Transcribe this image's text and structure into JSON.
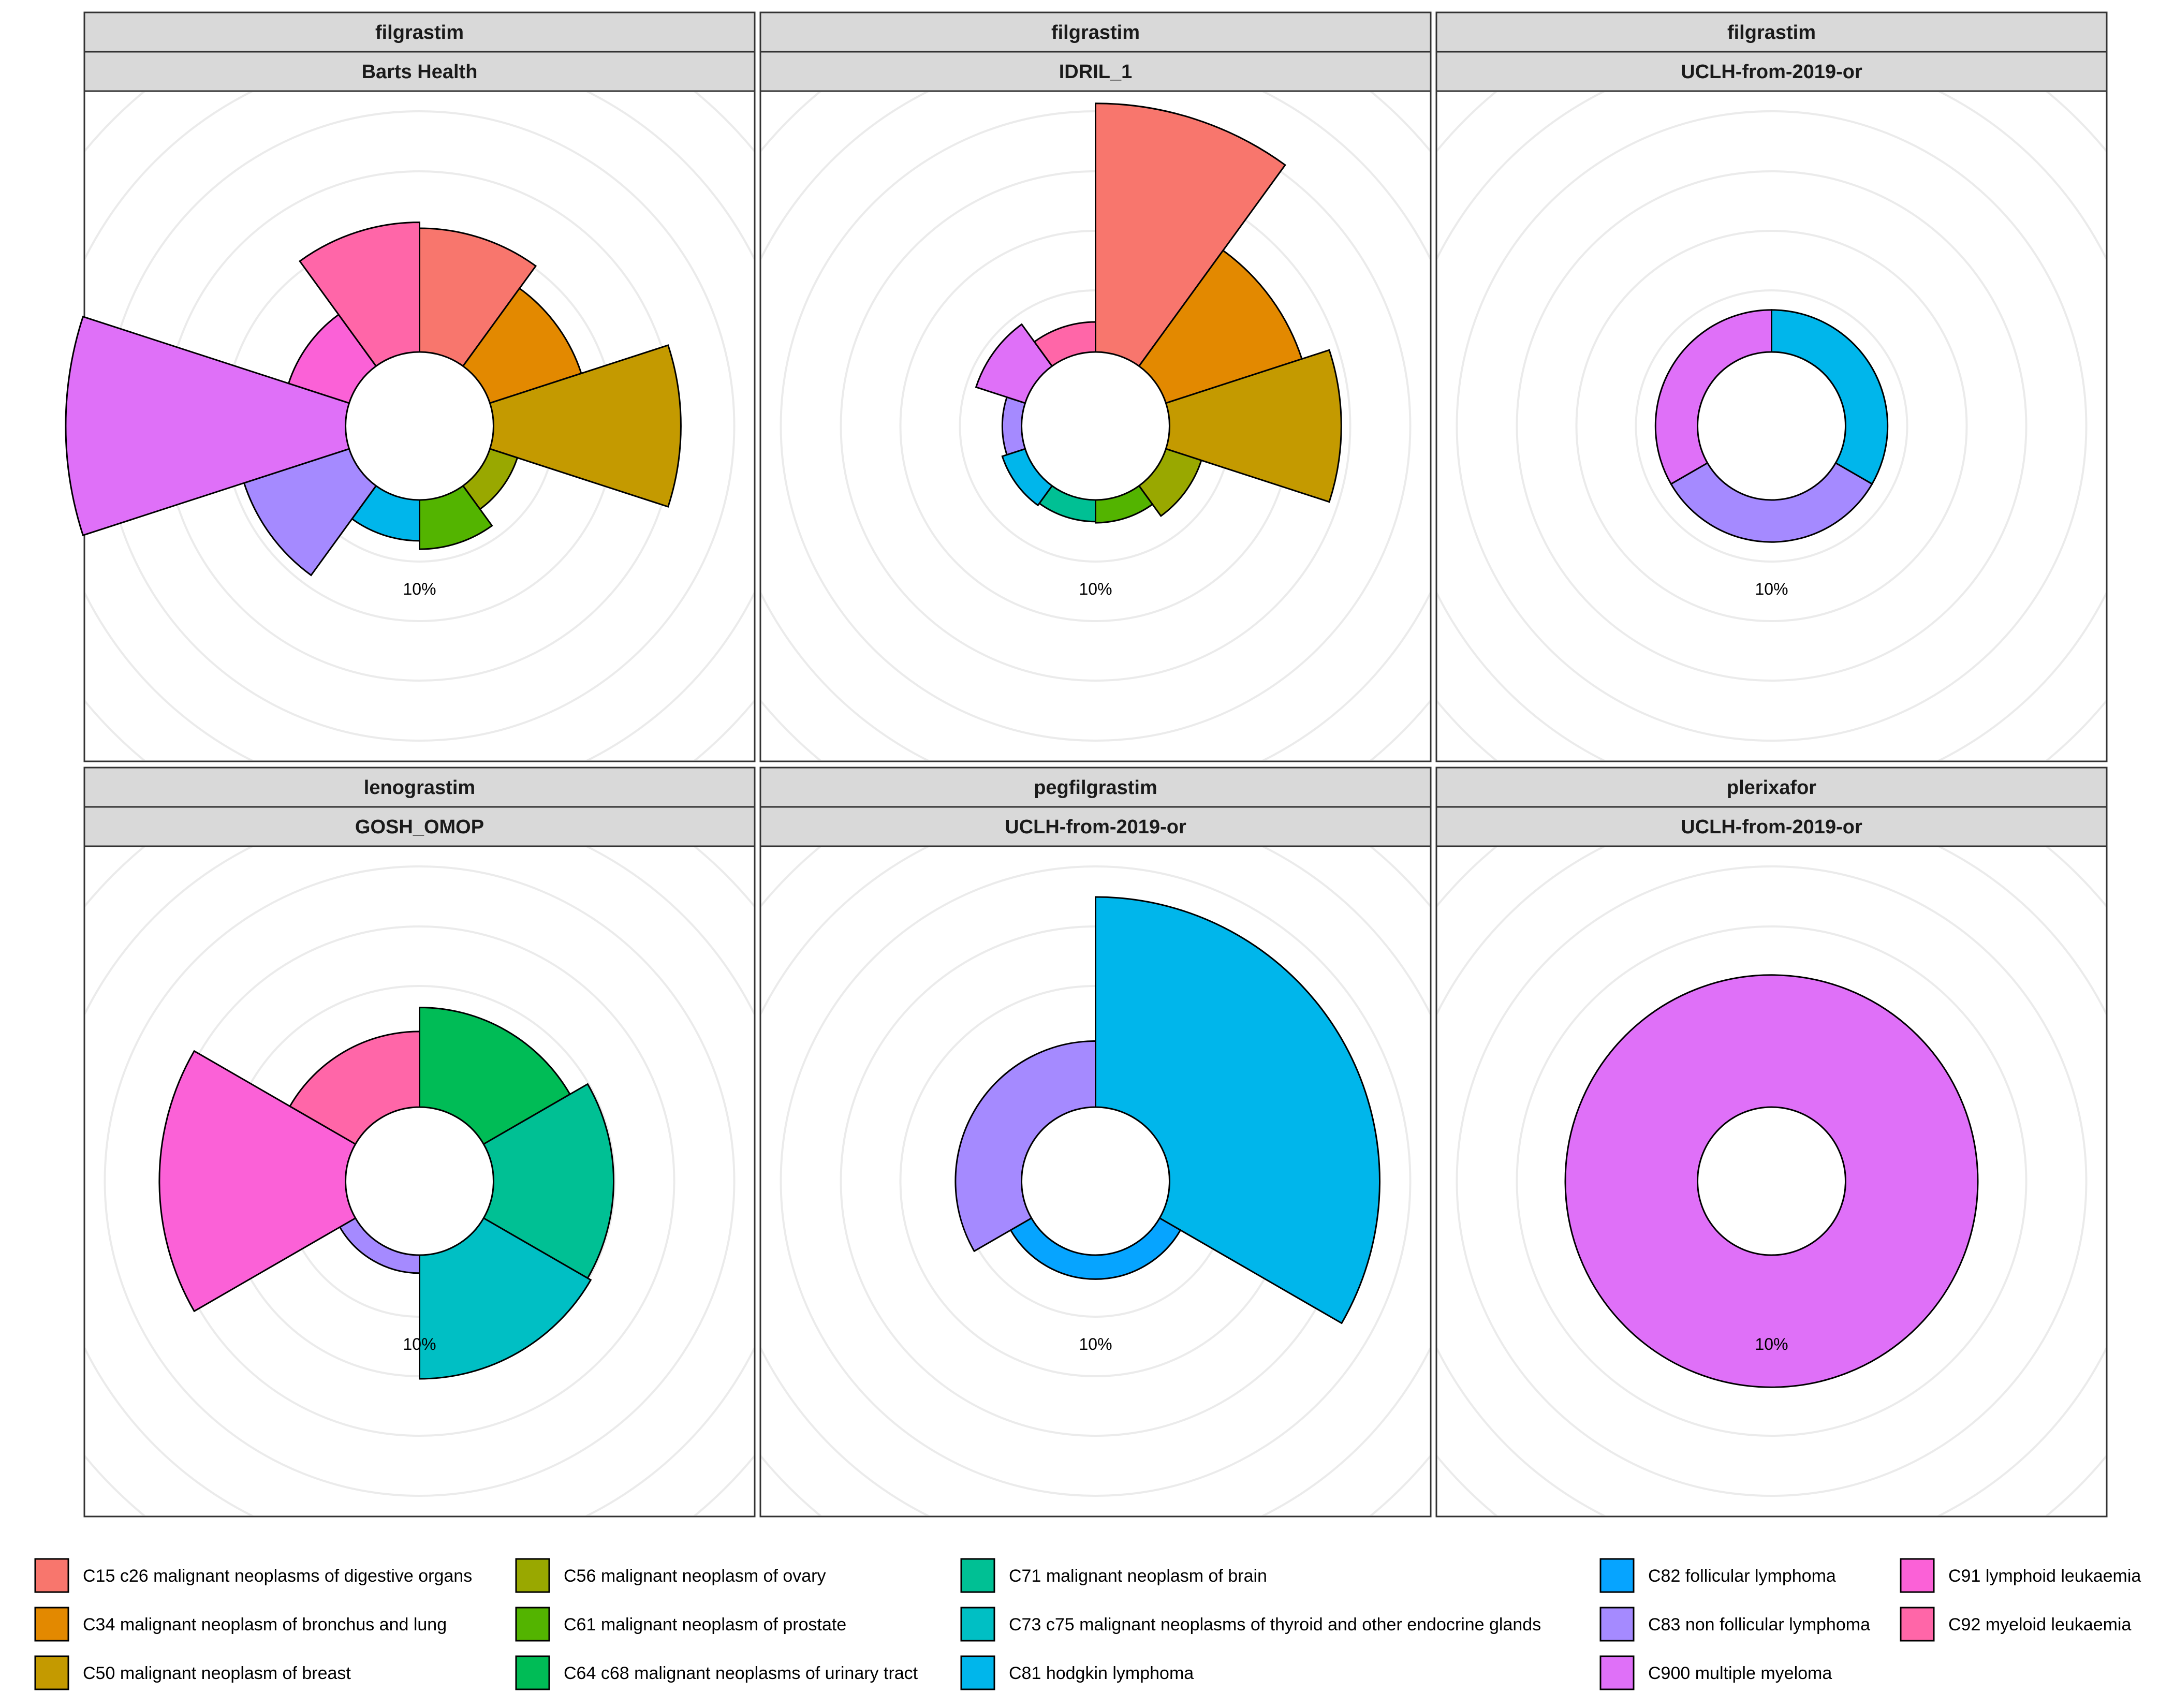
{
  "chart_data": {
    "type": "polar-bar",
    "radial_tick_label": "10%",
    "grid": true,
    "legend_position": "bottom",
    "categories": [
      {
        "code": "C15",
        "label": "C15 c26 malignant neoplasms of digestive organs",
        "color": "#F8766D"
      },
      {
        "code": "C34",
        "label": "C34 malignant neoplasm of bronchus and lung",
        "color": "#E38900"
      },
      {
        "code": "C50",
        "label": "C50 malignant neoplasm of breast",
        "color": "#C49A00"
      },
      {
        "code": "C56",
        "label": "C56 malignant neoplasm of ovary",
        "color": "#99A800"
      },
      {
        "code": "C61",
        "label": "C61 malignant neoplasm of prostate",
        "color": "#53B400"
      },
      {
        "code": "C64",
        "label": "C64 c68 malignant neoplasms of urinary tract",
        "color": "#00BC56"
      },
      {
        "code": "C71",
        "label": "C71 malignant neoplasm of brain",
        "color": "#00C094"
      },
      {
        "code": "C73",
        "label": "C73 c75 malignant neoplasms of thyroid and other endocrine glands",
        "color": "#00BFC4"
      },
      {
        "code": "C81",
        "label": "C81 hodgkin lymphoma",
        "color": "#00B6EB"
      },
      {
        "code": "C82",
        "label": "C82 follicular lymphoma",
        "color": "#06A4FF"
      },
      {
        "code": "C83",
        "label": "C83 non follicular lymphoma",
        "color": "#A58AFF"
      },
      {
        "code": "C900",
        "label": "C900 multiple myeloma",
        "color": "#DF70F8"
      },
      {
        "code": "C91",
        "label": "C91 lymphoid leukaemia",
        "color": "#FB61D7"
      },
      {
        "code": "C92",
        "label": "C92 myeloid leukaemia",
        "color": "#FF66A8"
      }
    ],
    "panels": [
      {
        "drug": "filgrastim",
        "site": "Barts Health",
        "slices": [
          {
            "category": "C15",
            "value": 10.3
          },
          {
            "category": "C34",
            "value": 8.0
          },
          {
            "category": "C50",
            "value": 15.6
          },
          {
            "category": "C56",
            "value": 2.4
          },
          {
            "category": "C61",
            "value": 4.1
          },
          {
            "category": "C81",
            "value": 3.4
          },
          {
            "category": "C83",
            "value": 9.2
          },
          {
            "category": "C900",
            "value": 23.3
          },
          {
            "category": "C91",
            "value": 5.3
          },
          {
            "category": "C92",
            "value": 10.8
          }
        ]
      },
      {
        "drug": "filgrastim",
        "site": "IDRIL_1",
        "slices": [
          {
            "category": "C15",
            "value": 20.7
          },
          {
            "category": "C34",
            "value": 11.9
          },
          {
            "category": "C50",
            "value": 14.3
          },
          {
            "category": "C56",
            "value": 3.1
          },
          {
            "category": "C61",
            "value": 1.9
          },
          {
            "category": "C71",
            "value": 1.8
          },
          {
            "category": "C81",
            "value": 2.0
          },
          {
            "category": "C83",
            "value": 1.6
          },
          {
            "category": "C900",
            "value": 4.3
          },
          {
            "category": "C92",
            "value": 2.5
          }
        ]
      },
      {
        "drug": "filgrastim",
        "site": "UCLH-from-2019-or",
        "slices": [
          {
            "category": "C81",
            "value": 3.5
          },
          {
            "category": "C83",
            "value": 3.5
          },
          {
            "category": "C900",
            "value": 3.5
          }
        ]
      },
      {
        "drug": "lenograstim",
        "site": "GOSH_OMOP",
        "slices": [
          {
            "category": "C64",
            "value": 8.3
          },
          {
            "category": "C71",
            "value": 10.0
          },
          {
            "category": "C73",
            "value": 10.3
          },
          {
            "category": "C83",
            "value": 1.5
          },
          {
            "category": "C91",
            "value": 15.5
          },
          {
            "category": "C92",
            "value": 6.3
          }
        ]
      },
      {
        "drug": "pegfilgrastim",
        "site": "UCLH-from-2019-or",
        "slices": [
          {
            "category": "C81",
            "value": 17.5
          },
          {
            "category": "C82",
            "value": 2.0
          },
          {
            "category": "C83",
            "value": 5.5
          }
        ]
      },
      {
        "drug": "plerixafor",
        "site": "UCLH-from-2019-or",
        "slices": [
          {
            "category": "C900",
            "value": 11.0
          }
        ]
      }
    ]
  }
}
